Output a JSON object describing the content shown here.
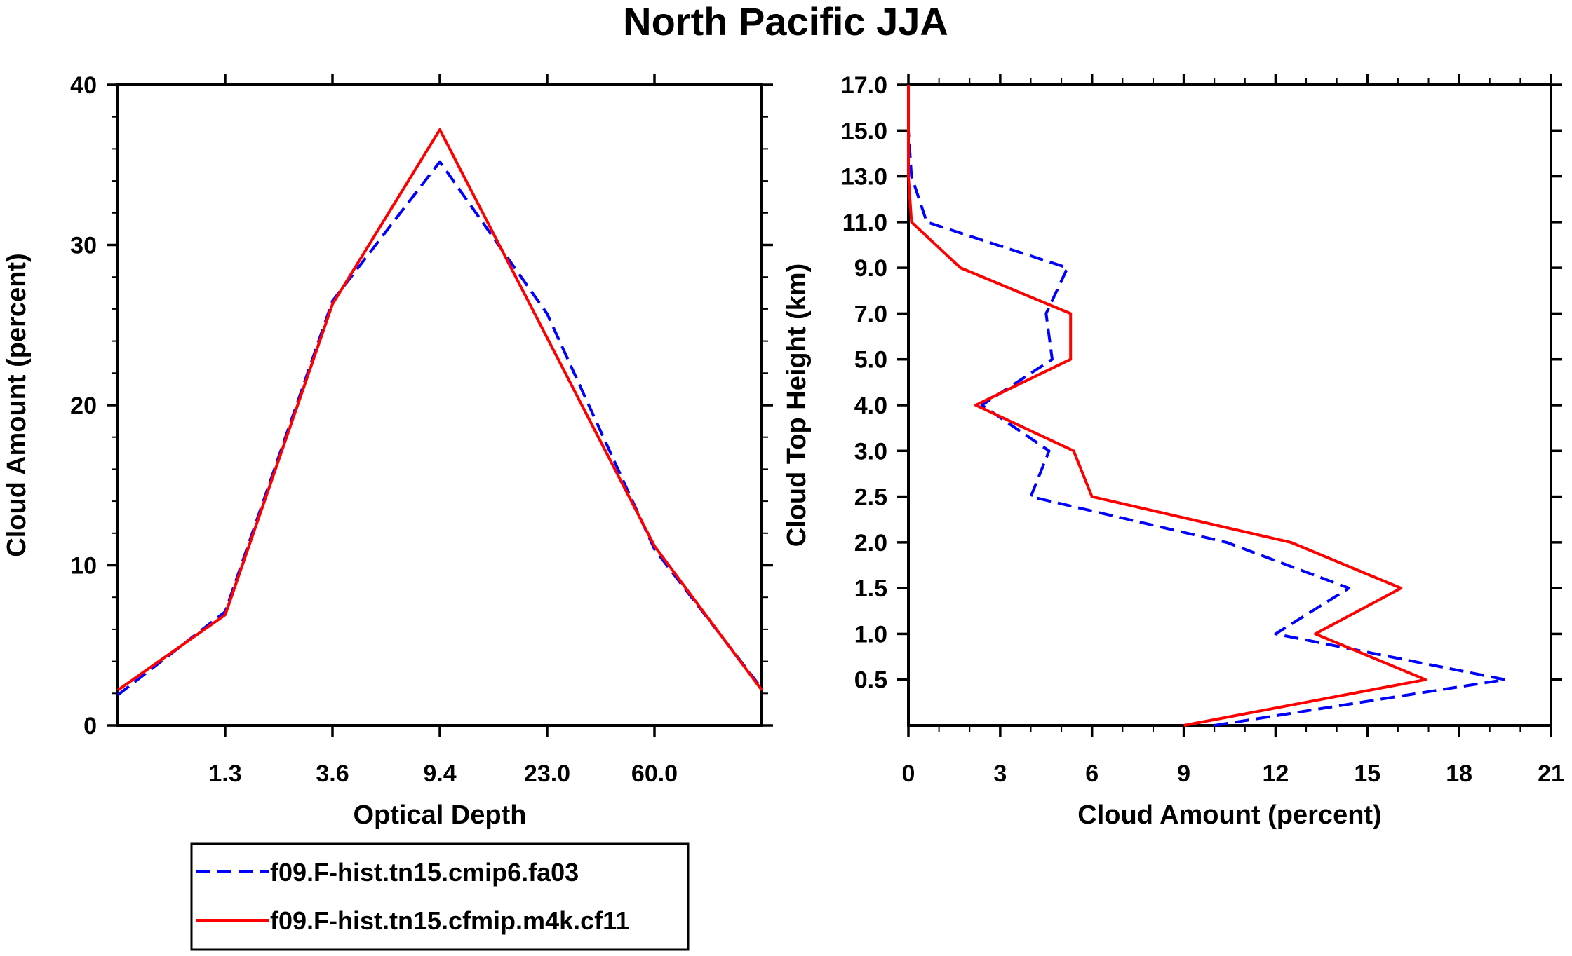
{
  "title": "North Pacific JJA",
  "colors": {
    "series_1": "#0000ff",
    "series_2": "#ff0000",
    "frame": "#000000"
  },
  "chart_data": [
    {
      "type": "line",
      "title": "North Pacific JJA",
      "xlabel": "Optical Depth",
      "ylabel": "Cloud Amount (percent)",
      "x_bins": 7,
      "x_tick_labels": [
        "1.3",
        "3.6",
        "9.4",
        "23.0",
        "60.0"
      ],
      "x_tick_bins": [
        1,
        2,
        3,
        4,
        5
      ],
      "ylim": [
        0,
        40
      ],
      "y_ticks": [
        0,
        10,
        20,
        30,
        40
      ],
      "series": [
        {
          "name": "f09.F-hist.tn15.cmip6.fa03",
          "style": "dashed",
          "color": "#0000ff",
          "x": [
            0,
            1,
            2,
            3,
            4,
            5,
            6
          ],
          "values": [
            1.9,
            7.1,
            26.5,
            35.2,
            25.7,
            11.0,
            2.3
          ]
        },
        {
          "name": "f09.F-hist.tn15.cfmip.m4k.cf11",
          "style": "solid",
          "color": "#ff0000",
          "x": [
            0,
            1,
            2,
            3,
            4,
            5,
            6
          ],
          "values": [
            2.2,
            6.9,
            26.3,
            37.2,
            24.2,
            11.2,
            2.2
          ]
        }
      ]
    },
    {
      "type": "line",
      "title": "",
      "xlabel": "Cloud Amount (percent)",
      "ylabel": "Cloud Top Height (km)",
      "xlim": [
        0,
        21
      ],
      "x_ticks": [
        0,
        3,
        6,
        9,
        12,
        15,
        18,
        21
      ],
      "y_levels": 14,
      "y_tick_labels": [
        "0.5",
        "1.0",
        "1.5",
        "2.0",
        "2.5",
        "3.0",
        "4.0",
        "5.0",
        "7.0",
        "9.0",
        "11.0",
        "13.0",
        "15.0",
        "17.0"
      ],
      "series": [
        {
          "name": "f09.F-hist.tn15.cmip6.fa03",
          "style": "dashed",
          "color": "#0000ff",
          "level": [
            0,
            1,
            2,
            3,
            4,
            5,
            6,
            7,
            8,
            9,
            10,
            11,
            12,
            13,
            14
          ],
          "values": [
            10.0,
            19.5,
            12.0,
            14.4,
            10.4,
            4.0,
            4.6,
            2.4,
            4.7,
            4.5,
            5.2,
            0.6,
            0.1,
            0.0,
            0.0
          ]
        },
        {
          "name": "f09.F-hist.tn15.cfmip.m4k.cf11",
          "style": "solid",
          "color": "#ff0000",
          "level": [
            0,
            1,
            2,
            3,
            4,
            5,
            6,
            7,
            8,
            9,
            10,
            11,
            12,
            13,
            14
          ],
          "values": [
            9.0,
            16.9,
            13.3,
            16.1,
            12.5,
            6.0,
            5.4,
            2.2,
            5.3,
            5.3,
            1.7,
            0.1,
            0.0,
            0.0,
            0.0
          ]
        }
      ]
    }
  ],
  "legend": {
    "entries": [
      "f09.F-hist.tn15.cmip6.fa03",
      "f09.F-hist.tn15.cfmip.m4k.cf11"
    ]
  }
}
